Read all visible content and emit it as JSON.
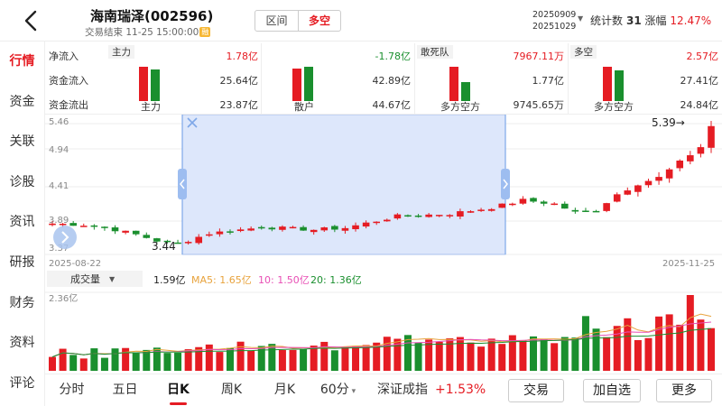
{
  "header": {
    "title": "海南瑞泽(002596)",
    "subtitle": "交易结束 11-25 15:00:00",
    "badge": "融",
    "seg": [
      "区间",
      "多空"
    ],
    "date_from": "20250909",
    "date_to": "20251029",
    "stat_label": "统计数",
    "stat_count": "31",
    "stat_change_label": "涨幅",
    "stat_change": "12.47%"
  },
  "nav": [
    "行情",
    "资金",
    "关联",
    "诊股",
    "资讯",
    "研报",
    "财务",
    "资料",
    "评论"
  ],
  "flows": {
    "main": {
      "header": "主力",
      "rows": [
        {
          "label": "净流入",
          "value": "1.78亿"
        },
        {
          "label": "资金流入",
          "value": "25.64亿"
        },
        {
          "label": "资金流出",
          "value": "23.87亿"
        }
      ],
      "caption": "主力",
      "in_value": 25.64,
      "out_value": 23.87
    },
    "retail": {
      "rows": [
        {
          "value": "-1.78亿"
        },
        {
          "value": "42.89亿"
        },
        {
          "value": "44.67亿"
        }
      ],
      "caption": "散户",
      "in_value": 42.89,
      "out_value": 44.67
    },
    "dare": {
      "header": "敢死队",
      "rows": [
        {
          "value": "7967.11万"
        },
        {
          "value": "1.77亿"
        },
        {
          "value": "9745.65万"
        }
      ],
      "caption": "多方空方",
      "in_value": 1.77,
      "out_value": 0.974565
    },
    "longshort": {
      "header": "多空",
      "rows": [
        {
          "value": "2.57亿"
        },
        {
          "value": "27.41亿"
        },
        {
          "value": "24.84亿"
        }
      ],
      "caption": "多方空方",
      "in_value": 27.41,
      "out_value": 24.84
    }
  },
  "chart_data": {
    "type": "candlestick",
    "price_ticks": [
      "5.46",
      "4.94",
      "4.41",
      "3.89",
      "3.37"
    ],
    "price_range": [
      3.37,
      5.46
    ],
    "date_start": "2025-08-22",
    "date_end": "2025-11-25",
    "low_label": "3.44",
    "high_label": "5.39→",
    "selection_start": "20250909",
    "selection_end": "20251029",
    "candle_count": 64,
    "anchors": [
      [
        0,
        3.8
      ],
      [
        3,
        3.78
      ],
      [
        6,
        3.7
      ],
      [
        8,
        3.62
      ],
      [
        10,
        3.52
      ],
      [
        12,
        3.47
      ],
      [
        15,
        3.64
      ],
      [
        20,
        3.74
      ],
      [
        25,
        3.7
      ],
      [
        28,
        3.73
      ],
      [
        33,
        3.92
      ],
      [
        38,
        3.96
      ],
      [
        42,
        4.06
      ],
      [
        45,
        4.18
      ],
      [
        48,
        4.12
      ],
      [
        50,
        3.98
      ],
      [
        52,
        4.02
      ],
      [
        54,
        4.28
      ],
      [
        56,
        4.45
      ],
      [
        58,
        4.55
      ],
      [
        60,
        4.8
      ],
      [
        62,
        5.05
      ],
      [
        63,
        5.39
      ]
    ],
    "volume_label": "成交量",
    "volume_value": "1.59亿",
    "ma": [
      {
        "name": "MA5",
        "value": "1.65亿",
        "color": "#e8a33d"
      },
      {
        "name": "10",
        "value": "1.50亿",
        "color": "#e84fb5"
      },
      {
        "name": "20",
        "value": "1.36亿",
        "color": "#1a8f2e"
      }
    ],
    "volume_max_label": "2.36亿",
    "volume_max": 2.36
  },
  "bottom": {
    "tabs": [
      "分时",
      "五日",
      "日K",
      "周K",
      "月K",
      "60分"
    ],
    "active_tab": "日K",
    "index_name": "深证成指",
    "index_change": "+1.53%",
    "buttons": [
      "交易",
      "加自选",
      "更多"
    ]
  },
  "colors": {
    "up": "#e51c23",
    "down": "#1a8f2e",
    "selection": "#dde7fb",
    "selection_edge": "#7fa8e8"
  }
}
